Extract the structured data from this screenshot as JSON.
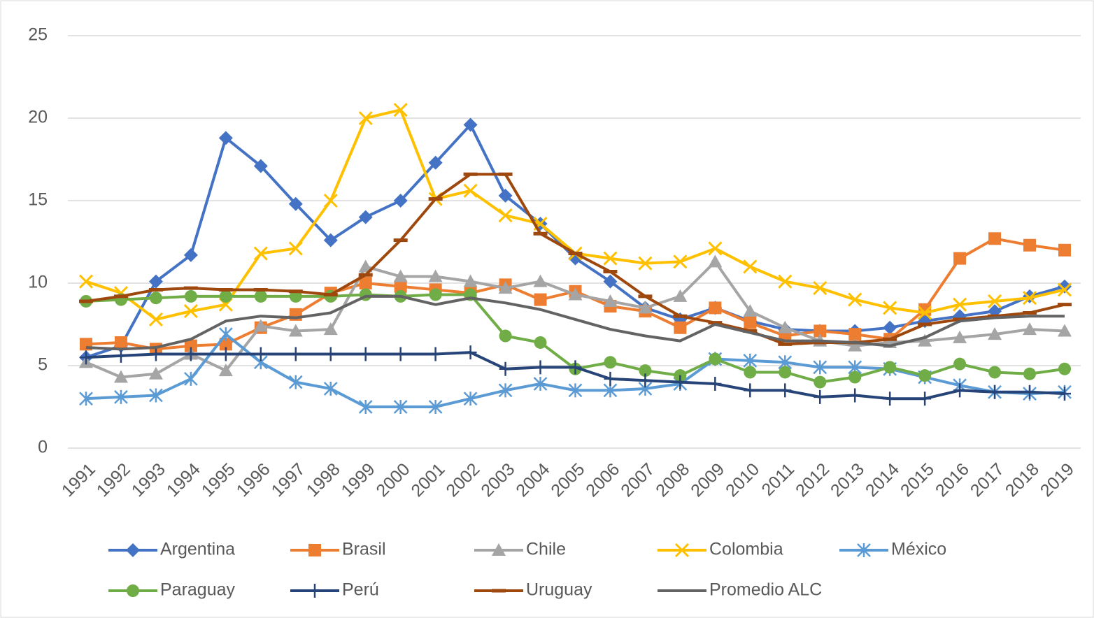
{
  "chart_data": {
    "type": "line",
    "categories": [
      "1991",
      "1992",
      "1993",
      "1994",
      "1995",
      "1996",
      "1997",
      "1998",
      "1999",
      "2000",
      "2001",
      "2002",
      "2003",
      "2004",
      "2005",
      "2006",
      "2007",
      "2008",
      "2009",
      "2010",
      "2011",
      "2012",
      "2013",
      "2014",
      "2015",
      "2016",
      "2017",
      "2018",
      "2019"
    ],
    "ylim": [
      0,
      25
    ],
    "yticks": [
      0,
      5,
      10,
      15,
      20,
      25
    ],
    "grid": true,
    "legend": "bottom",
    "series": [
      {
        "name": "Argentina",
        "color": "#4472c4",
        "marker": "diamond",
        "values": [
          5.5,
          6.2,
          10.1,
          11.7,
          18.8,
          17.1,
          14.8,
          12.6,
          14.0,
          15.0,
          17.3,
          19.6,
          15.3,
          13.6,
          11.5,
          10.1,
          8.5,
          7.8,
          8.5,
          7.7,
          7.2,
          7.1,
          7.1,
          7.3,
          7.7,
          8.0,
          8.3,
          9.2,
          9.8
        ]
      },
      {
        "name": "Brasil",
        "color": "#ed7d31",
        "marker": "square",
        "values": [
          6.3,
          6.4,
          6.0,
          6.2,
          6.3,
          7.3,
          8.1,
          9.4,
          10.0,
          9.8,
          9.6,
          9.4,
          9.9,
          9.0,
          9.5,
          8.6,
          8.3,
          7.3,
          8.5,
          7.6,
          6.8,
          7.1,
          6.9,
          6.6,
          8.4,
          11.5,
          12.7,
          12.3,
          12.0
        ]
      },
      {
        "name": "Chile",
        "color": "#a5a5a5",
        "marker": "triangle",
        "values": [
          5.2,
          4.3,
          4.5,
          5.7,
          4.7,
          7.4,
          7.1,
          7.2,
          11.0,
          10.4,
          10.4,
          10.1,
          9.7,
          10.1,
          9.3,
          8.9,
          8.5,
          9.2,
          11.3,
          8.3,
          7.3,
          6.5,
          6.2,
          6.4,
          6.5,
          6.7,
          6.9,
          7.2,
          7.1
        ]
      },
      {
        "name": "Colombia",
        "color": "#ffc000",
        "marker": "x",
        "values": [
          10.1,
          9.4,
          7.8,
          8.3,
          8.7,
          11.8,
          12.1,
          15.0,
          20.0,
          20.5,
          15.1,
          15.6,
          14.1,
          13.6,
          11.8,
          11.5,
          11.2,
          11.3,
          12.1,
          11.0,
          10.1,
          9.7,
          9.0,
          8.5,
          8.2,
          8.7,
          8.9,
          9.1,
          9.6
        ]
      },
      {
        "name": "México",
        "color": "#5b9bd5",
        "marker": "asterisk",
        "values": [
          3.0,
          3.1,
          3.2,
          4.2,
          6.9,
          5.2,
          4.0,
          3.6,
          2.5,
          2.5,
          2.5,
          3.0,
          3.5,
          3.9,
          3.5,
          3.5,
          3.6,
          3.9,
          5.4,
          5.3,
          5.2,
          4.9,
          4.9,
          4.8,
          4.3,
          3.8,
          3.4,
          3.3,
          3.4
        ]
      },
      {
        "name": "Paraguay",
        "color": "#70ad47",
        "marker": "circle",
        "values": [
          8.9,
          9.0,
          9.1,
          9.2,
          9.2,
          9.2,
          9.2,
          9.2,
          9.3,
          9.2,
          9.3,
          9.3,
          6.8,
          6.4,
          4.8,
          5.2,
          4.7,
          4.4,
          5.4,
          4.6,
          4.6,
          4.0,
          4.3,
          4.9,
          4.4,
          5.1,
          4.6,
          4.5,
          4.8
        ]
      },
      {
        "name": "Perú",
        "color": "#264478",
        "marker": "plus",
        "values": [
          5.5,
          5.6,
          5.7,
          5.7,
          5.7,
          5.7,
          5.7,
          5.7,
          5.7,
          5.7,
          5.7,
          5.8,
          4.8,
          4.9,
          4.9,
          4.2,
          4.1,
          4.0,
          3.9,
          3.5,
          3.5,
          3.1,
          3.2,
          3.0,
          3.0,
          3.5,
          3.4,
          3.4,
          3.3
        ]
      },
      {
        "name": "Uruguay",
        "color": "#9e480e",
        "marker": "dash",
        "values": [
          8.9,
          9.2,
          9.6,
          9.7,
          9.6,
          9.6,
          9.5,
          9.3,
          10.5,
          12.6,
          15.1,
          16.6,
          16.6,
          13.0,
          11.8,
          10.7,
          9.2,
          8.0,
          7.6,
          7.1,
          6.3,
          6.4,
          6.4,
          6.6,
          7.5,
          7.8,
          8.0,
          8.2,
          8.7
        ]
      },
      {
        "name": "Promedio ALC",
        "color": "#636363",
        "marker": "none",
        "values": [
          6.1,
          6.0,
          6.1,
          6.6,
          7.7,
          8.0,
          7.9,
          8.2,
          9.2,
          9.2,
          8.7,
          9.1,
          8.8,
          8.4,
          7.8,
          7.2,
          6.8,
          6.5,
          7.5,
          7.0,
          6.5,
          6.5,
          6.4,
          6.2,
          6.7,
          7.7,
          7.9,
          8.0,
          8.0
        ]
      }
    ]
  }
}
